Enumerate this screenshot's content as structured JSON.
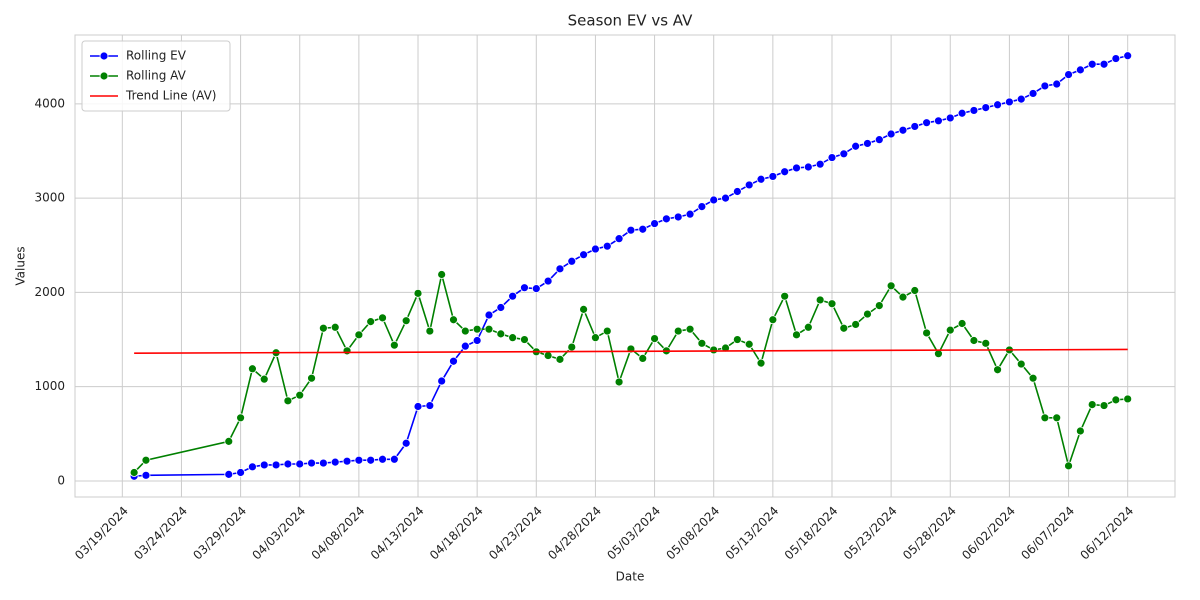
{
  "chart_data": {
    "type": "line",
    "title": "Season EV vs AV",
    "xlabel": "Date",
    "ylabel": "Values",
    "x": [
      "03/20/2024",
      "03/21/2024",
      "03/28/2024",
      "03/29/2024",
      "03/30/2024",
      "03/31/2024",
      "04/01/2024",
      "04/02/2024",
      "04/03/2024",
      "04/04/2024",
      "04/05/2024",
      "04/06/2024",
      "04/07/2024",
      "04/08/2024",
      "04/09/2024",
      "04/10/2024",
      "04/11/2024",
      "04/12/2024",
      "04/13/2024",
      "04/14/2024",
      "04/15/2024",
      "04/16/2024",
      "04/17/2024",
      "04/18/2024",
      "04/19/2024",
      "04/20/2024",
      "04/21/2024",
      "04/22/2024",
      "04/23/2024",
      "04/24/2024",
      "04/25/2024",
      "04/26/2024",
      "04/27/2024",
      "04/28/2024",
      "04/29/2024",
      "04/30/2024",
      "05/01/2024",
      "05/02/2024",
      "05/03/2024",
      "05/04/2024",
      "05/05/2024",
      "05/06/2024",
      "05/07/2024",
      "05/08/2024",
      "05/09/2024",
      "05/10/2024",
      "05/11/2024",
      "05/12/2024",
      "05/13/2024",
      "05/14/2024",
      "05/15/2024",
      "05/16/2024",
      "05/17/2024",
      "05/18/2024",
      "05/19/2024",
      "05/20/2024",
      "05/21/2024",
      "05/22/2024",
      "05/23/2024",
      "05/24/2024",
      "05/25/2024",
      "05/26/2024",
      "05/27/2024",
      "05/28/2024",
      "05/29/2024",
      "05/30/2024",
      "05/31/2024",
      "06/01/2024",
      "06/02/2024",
      "06/03/2024",
      "06/04/2024",
      "06/05/2024",
      "06/06/2024",
      "06/07/2024",
      "06/08/2024",
      "06/09/2024",
      "06/10/2024",
      "06/11/2024",
      "06/12/2024"
    ],
    "series": [
      {
        "name": "Rolling EV",
        "color": "#0000ff",
        "marker": true,
        "values": [
          50,
          60,
          70,
          90,
          150,
          170,
          170,
          180,
          180,
          190,
          190,
          200,
          210,
          220,
          220,
          230,
          230,
          400,
          790,
          800,
          1060,
          1270,
          1430,
          1490,
          1760,
          1840,
          1960,
          2050,
          2040,
          2120,
          2250,
          2330,
          2400,
          2460,
          2490,
          2570,
          2660,
          2670,
          2730,
          2780,
          2800,
          2830,
          2910,
          2980,
          3000,
          3070,
          3140,
          3200,
          3230,
          3280,
          3320,
          3330,
          3360,
          3430,
          3470,
          3550,
          3580,
          3620,
          3680,
          3720,
          3760,
          3800,
          3820,
          3850,
          3900,
          3930,
          3960,
          3990,
          4020,
          4050,
          4110,
          4190,
          4210,
          4310,
          4360,
          4420,
          4420,
          4480,
          4510
        ]
      },
      {
        "name": "Rolling AV",
        "color": "#008000",
        "marker": true,
        "values": [
          90,
          220,
          420,
          670,
          1190,
          1080,
          1360,
          850,
          910,
          1090,
          1620,
          1630,
          1380,
          1550,
          1690,
          1730,
          1440,
          1700,
          1990,
          1590,
          2190,
          1710,
          1590,
          1610,
          1610,
          1560,
          1520,
          1500,
          1370,
          1330,
          1290,
          1420,
          1820,
          1520,
          1590,
          1050,
          1400,
          1300,
          1510,
          1380,
          1590,
          1610,
          1460,
          1390,
          1410,
          1500,
          1450,
          1250,
          1710,
          1960,
          1550,
          1630,
          1920,
          1880,
          1620,
          1660,
          1770,
          1860,
          2070,
          1950,
          2020,
          1570,
          1350,
          1600,
          1670,
          1490,
          1460,
          1180,
          1390,
          1240,
          1090,
          670,
          670,
          160,
          530,
          810,
          800,
          860,
          870
        ]
      },
      {
        "name": "Trend Line (AV)",
        "color": "#ff0000",
        "marker": false,
        "x": [
          "03/20/2024",
          "06/12/2024"
        ],
        "values": [
          1355,
          1395
        ]
      }
    ],
    "xlim": [
      "03/15/2024",
      "06/16/2024"
    ],
    "xticks": [
      "03/19/2024",
      "03/24/2024",
      "03/29/2024",
      "04/03/2024",
      "04/08/2024",
      "04/13/2024",
      "04/18/2024",
      "04/23/2024",
      "04/28/2024",
      "05/03/2024",
      "05/08/2024",
      "05/13/2024",
      "05/18/2024",
      "05/23/2024",
      "05/28/2024",
      "06/02/2024",
      "06/07/2024",
      "06/12/2024"
    ],
    "ylim": [
      -170,
      4730
    ],
    "yticks": [
      0,
      1000,
      2000,
      3000,
      4000
    ],
    "grid": true,
    "legend": "upper left"
  }
}
